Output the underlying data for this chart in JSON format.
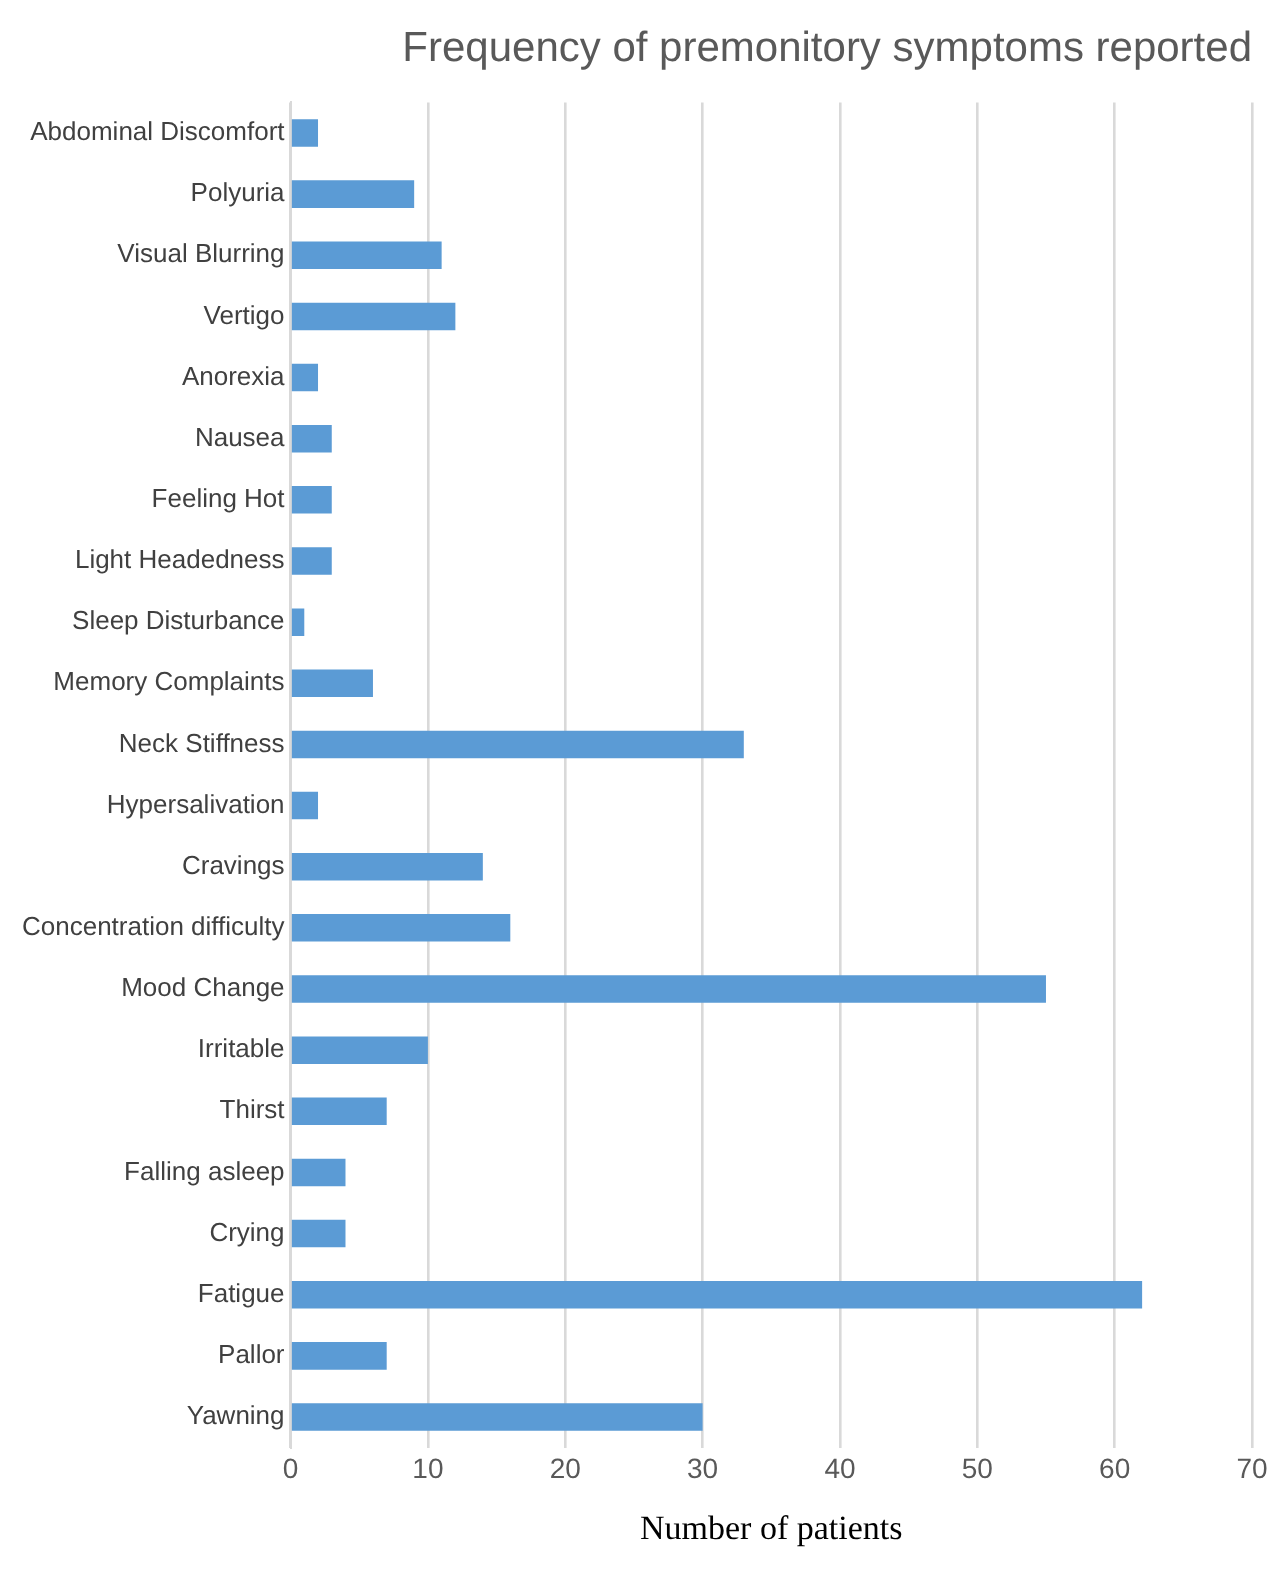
{
  "chart_data": {
    "type": "bar",
    "orientation": "horizontal",
    "title": "Frequency of premonitory symptoms reported",
    "xlabel": "Number of patients",
    "categories": [
      "Abdominal Discomfort",
      "Polyuria",
      "Visual Blurring",
      "Vertigo",
      "Anorexia",
      "Nausea",
      "Feeling Hot",
      "Light Headedness",
      "Sleep Disturbance",
      "Memory Complaints",
      "Neck Stiffness",
      "Hypersalivation",
      "Cravings",
      "Concentration difficulty",
      "Mood Change",
      "Irritable",
      "Thirst",
      "Falling asleep",
      "Crying",
      "Fatigue",
      "Pallor",
      "Yawning"
    ],
    "values": [
      2,
      9,
      11,
      12,
      2,
      3,
      3,
      3,
      1,
      6,
      33,
      2,
      14,
      16,
      55,
      10,
      7,
      4,
      4,
      62,
      7,
      30
    ],
    "color": "#5b9bd5",
    "xlim": [
      0,
      70
    ],
    "xticks": [
      0,
      10,
      20,
      30,
      40,
      50,
      60,
      70
    ],
    "grid": "x",
    "legend": false
  }
}
